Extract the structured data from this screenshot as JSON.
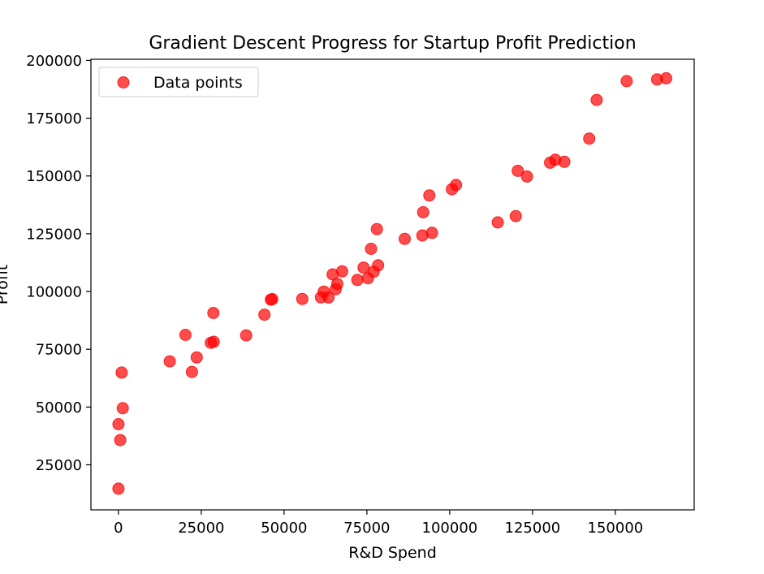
{
  "chart_data": {
    "type": "scatter",
    "title": "Gradient Descent Progress for Startup Profit Prediction",
    "xlabel": "R&D Spend",
    "ylabel": "Profit",
    "xlim": [
      -8300,
      173800
    ],
    "ylim": [
      5500,
      200500
    ],
    "xticks": [
      0,
      25000,
      50000,
      75000,
      100000,
      125000,
      150000
    ],
    "yticks": [
      25000,
      50000,
      75000,
      100000,
      125000,
      150000,
      175000,
      200000
    ],
    "grid": false,
    "legend": {
      "position": "top-left",
      "entries": [
        "Data points"
      ]
    },
    "colors": {
      "points": "#ff0000",
      "axes": "#000000"
    },
    "series": [
      {
        "name": "Data points",
        "points": [
          [
            165349,
            192262
          ],
          [
            162598,
            191792
          ],
          [
            153442,
            191050
          ],
          [
            144372,
            182902
          ],
          [
            142107,
            166188
          ],
          [
            131877,
            156991
          ],
          [
            134615,
            156123
          ],
          [
            130298,
            155753
          ],
          [
            120543,
            152212
          ],
          [
            123335,
            149760
          ],
          [
            101913,
            146122
          ],
          [
            100672,
            144259
          ],
          [
            93864,
            141586
          ],
          [
            91992,
            134307
          ],
          [
            119943,
            132603
          ],
          [
            114524,
            129917
          ],
          [
            78013,
            126993
          ],
          [
            94657,
            125371
          ],
          [
            91749,
            124267
          ],
          [
            86420,
            122777
          ],
          [
            76254,
            118474
          ],
          [
            78389,
            111314
          ],
          [
            73995,
            110352
          ],
          [
            67533,
            108734
          ],
          [
            77044,
            108552
          ],
          [
            64665,
            107404
          ],
          [
            75329,
            105734
          ],
          [
            72108,
            105008
          ],
          [
            66052,
            103282
          ],
          [
            65606,
            101004
          ],
          [
            61995,
            99938
          ],
          [
            61136,
            97484
          ],
          [
            63409,
            97428
          ],
          [
            55494,
            96779
          ],
          [
            46427,
            96713
          ],
          [
            46014,
            96479
          ],
          [
            28664,
            90708
          ],
          [
            44070,
            89949
          ],
          [
            20230,
            81230
          ],
          [
            38558,
            81006
          ],
          [
            28754,
            78240
          ],
          [
            27893,
            77799
          ],
          [
            23641,
            71499
          ],
          [
            15506,
            69759
          ],
          [
            22178,
            65200
          ],
          [
            1001,
            64927
          ],
          [
            1315,
            49491
          ],
          [
            0,
            42560
          ],
          [
            542,
            35673
          ],
          [
            0,
            14681
          ]
        ]
      }
    ]
  }
}
